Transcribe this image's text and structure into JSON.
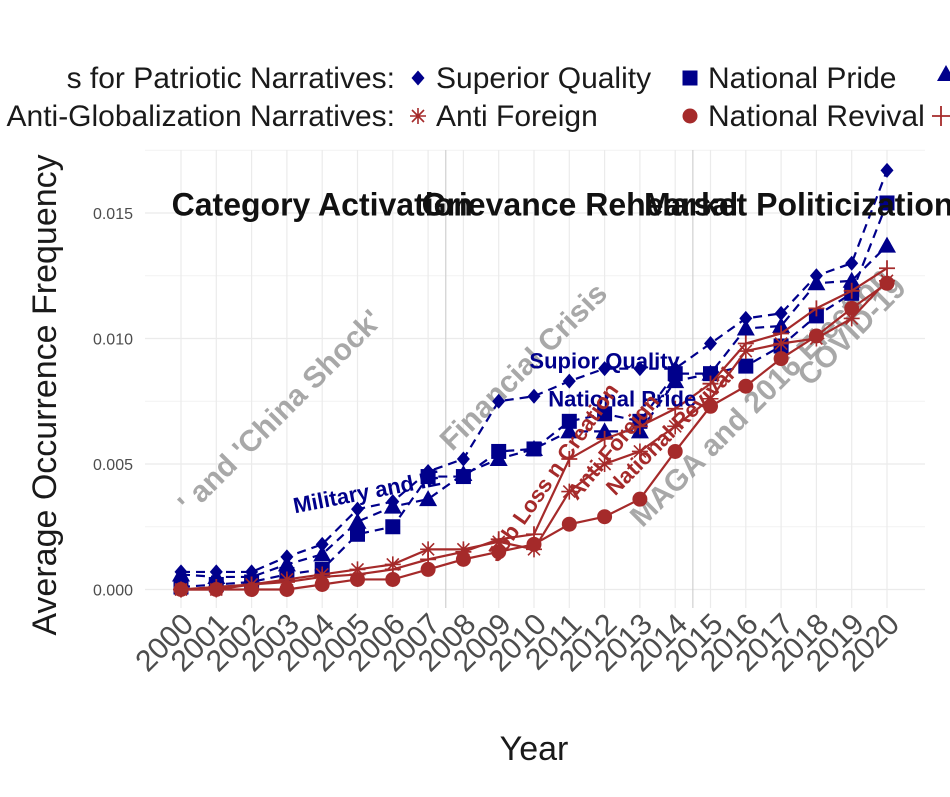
{
  "chart_data": {
    "type": "line",
    "x": [
      2000,
      2001,
      2002,
      2003,
      2004,
      2005,
      2006,
      2007,
      2008,
      2009,
      2010,
      2011,
      2012,
      2013,
      2014,
      2015,
      2016,
      2017,
      2018,
      2019,
      2020
    ],
    "xlabel": "Year",
    "ylabel": "Average Occurrence Frequency",
    "ylim": [
      -0.0007,
      0.0178
    ],
    "y_ticks": [
      0.0,
      0.005,
      0.01,
      0.015
    ],
    "y_tick_labels": [
      "0.000",
      "0.005",
      "0.010",
      "0.015"
    ],
    "x_tick_labels": [
      "2000",
      "2001",
      "2002",
      "2003",
      "2004",
      "2005",
      "2006",
      "2007",
      "2008",
      "2009",
      "2010",
      "2011",
      "2012",
      "2013",
      "2014",
      "2015",
      "2016",
      "2017",
      "2018",
      "2019",
      "2020"
    ],
    "grid": true,
    "legend_position": "top",
    "legend_rows": [
      {
        "label": "s for Patriotic Narratives:",
        "entries": [
          "Superior Quality",
          "National Pride"
        ]
      },
      {
        "label": "Anti-Globalization Narratives:",
        "entries": [
          "Anti Foreign",
          "National Revival"
        ]
      }
    ],
    "colors": {
      "patriotic": "#00008B",
      "anti_globalization": "#A52A2A",
      "period": "#999999"
    },
    "series": [
      {
        "name": "Superior Quality",
        "group": "patriotic",
        "marker": "diamond",
        "dash": true,
        "values": [
          0.0007,
          0.0007,
          0.0007,
          0.0013,
          0.0018,
          0.0032,
          0.0035,
          0.0047,
          0.0052,
          0.0075,
          0.0077,
          0.0083,
          0.0088,
          0.0088,
          0.0088,
          0.0098,
          0.0108,
          0.011,
          0.0125,
          0.013,
          0.0167
        ]
      },
      {
        "name": "National Pride",
        "group": "patriotic",
        "marker": "square",
        "dash": true,
        "values": [
          0.0001,
          0.0002,
          0.0003,
          0.0006,
          0.0008,
          0.0022,
          0.0025,
          0.0045,
          0.0045,
          0.0055,
          0.0056,
          0.0067,
          0.007,
          0.0067,
          0.0086,
          0.0086,
          0.0089,
          0.0097,
          0.0109,
          0.0118,
          0.0154
        ]
      },
      {
        "name": "",
        "group": "patriotic",
        "marker": "triangle",
        "dash": true,
        "values": [
          0.0006,
          0.0005,
          0.0005,
          0.001,
          0.0014,
          0.0027,
          0.0033,
          0.0036,
          0.0046,
          0.0052,
          0.0056,
          0.0063,
          0.0063,
          0.0063,
          0.0083,
          0.0086,
          0.0104,
          0.0105,
          0.0122,
          0.0123,
          0.0137
        ]
      },
      {
        "name": "Anti Foreign",
        "group": "anti_globalization",
        "marker": "asterisk",
        "dash": false,
        "values": [
          0.0,
          0.0,
          0.0002,
          0.0004,
          0.0006,
          0.0008,
          0.001,
          0.0016,
          0.0016,
          0.0019,
          0.0016,
          0.0039,
          0.005,
          0.0055,
          0.0065,
          0.0076,
          0.0095,
          0.0098,
          0.01,
          0.0108,
          0.0123
        ]
      },
      {
        "name": "National Revival",
        "group": "anti_globalization",
        "marker": "circle",
        "dash": false,
        "values": [
          0.0,
          0.0,
          0.0,
          0.0,
          0.0002,
          0.0004,
          0.0004,
          0.0008,
          0.0012,
          0.0015,
          0.0018,
          0.0026,
          0.0029,
          0.0036,
          0.0055,
          0.0073,
          0.0081,
          0.0092,
          0.0101,
          0.0112,
          0.0122
        ]
      },
      {
        "name": "",
        "group": "anti_globalization",
        "marker": "plus",
        "dash": false,
        "values": [
          0.0,
          0.0001,
          0.0002,
          0.0003,
          0.0005,
          0.0006,
          0.0008,
          0.0012,
          0.0015,
          0.002,
          0.0022,
          0.0052,
          0.006,
          0.0065,
          0.0072,
          0.0082,
          0.0098,
          0.0102,
          0.0112,
          0.0119,
          0.0128
        ]
      }
    ],
    "period_dividers": [
      2007.5,
      2014.5
    ],
    "period_titles": [
      {
        "text": "Category Activation",
        "x": 2004.0,
        "y": 0.0149
      },
      {
        "text": "Grievance Rehearsal",
        "x": 2011.3,
        "y": 0.0149
      },
      {
        "text": "Market Politicization",
        "x": 2017.5,
        "y": 0.0149
      }
    ],
    "event_labels": [
      {
        "text": "' and 'China Shock'",
        "x": 2003.0,
        "y": 0.0068
      },
      {
        "text": "Financial Crisis",
        "x": 2009.9,
        "y": 0.0086
      },
      {
        "text": "MAGA and 2016 Election",
        "x": 2016.6,
        "y": 0.0074
      },
      {
        "text": "COVID-19",
        "x": 2019.2,
        "y": 0.01
      }
    ],
    "annotations": [
      {
        "text": "Supior Quality",
        "x": 2012.0,
        "y": 0.0088,
        "group": "patriotic",
        "angle": 0
      },
      {
        "text": "National Pride",
        "x": 2012.5,
        "y": 0.0073,
        "group": "patriotic",
        "angle": 0
      },
      {
        "text": "Military and IE",
        "x": 2005.3,
        "y": 0.0036,
        "group": "patriotic",
        "angle": -11
      },
      {
        "text": "Job Loss n Creation",
        "x": 2010.7,
        "y": 0.0045,
        "group": "anti_globalization",
        "angle": -55
      },
      {
        "text": "Anti Foreign",
        "x": 2012.4,
        "y": 0.0055,
        "group": "anti_globalization",
        "angle": -50
      },
      {
        "text": "National Revival",
        "x": 2014.0,
        "y": 0.0061,
        "group": "anti_globalization",
        "angle": -45
      }
    ]
  }
}
